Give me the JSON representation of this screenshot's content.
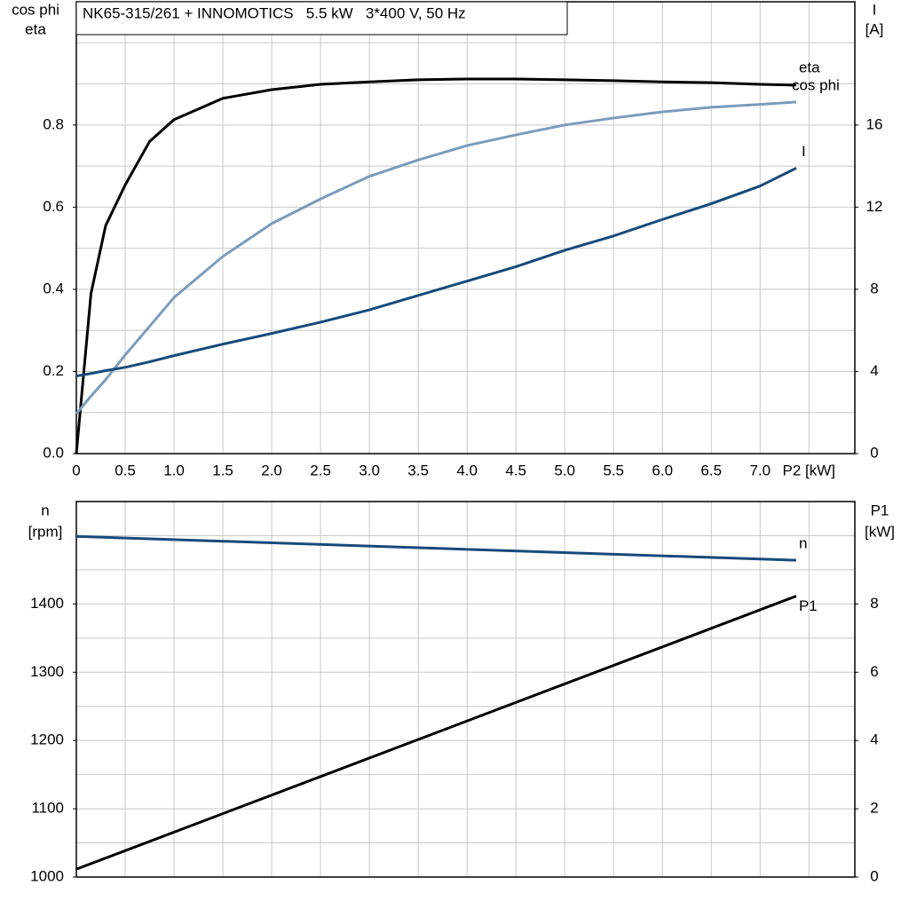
{
  "chart_data": [
    {
      "type": "line",
      "title": "NK65-315/261 + INNOMOTICS   5.5 kW   3*400 V, 50 Hz",
      "ylabel": [
        "cos phi",
        "eta"
      ],
      "y2label": [
        "I",
        "[A]"
      ],
      "x": [
        0,
        0.15,
        0.3,
        0.5,
        0.75,
        1,
        1.5,
        2,
        2.5,
        3,
        3.5,
        4,
        4.5,
        5,
        5.5,
        6,
        6.5,
        7,
        7.37
      ],
      "series": [
        {
          "name": "eta",
          "color": "#000000",
          "values": [
            0,
            0.39,
            0.555,
            0.654,
            0.76,
            0.813,
            0.865,
            0.886,
            0.899,
            0.905,
            0.91,
            0.912,
            0.912,
            0.91,
            0.908,
            0.905,
            0.903,
            0.899,
            0.897
          ]
        },
        {
          "name": "cos phi",
          "color": "#7b9cbb",
          "values": [
            0.097,
            0.14,
            0.18,
            0.24,
            0.31,
            0.38,
            0.48,
            0.56,
            0.62,
            0.675,
            0.715,
            0.75,
            0.776,
            0.8,
            0.817,
            0.832,
            0.843,
            0.85,
            0.856
          ]
        },
        {
          "name": "I",
          "color": "#174a7c",
          "axis": "y2",
          "values": [
            3.78,
            3.9,
            4.04,
            4.2,
            4.47,
            4.77,
            5.33,
            5.85,
            6.4,
            7.0,
            7.7,
            8.4,
            9.1,
            9.9,
            10.6,
            11.4,
            12.17,
            13.03,
            13.9
          ]
        }
      ],
      "xlim": [
        0,
        7.97
      ],
      "xticks": [
        0,
        0.5,
        {
          "value": 1,
          "label": "1.0"
        },
        1.5,
        {
          "value": 2,
          "label": "2.0"
        },
        2.5,
        {
          "value": 3,
          "label": "3.0"
        },
        3.5,
        {
          "value": 4,
          "label": "4.0"
        },
        4.5,
        {
          "value": 5,
          "label": "5.0"
        },
        5.5,
        {
          "value": 6,
          "label": "6.0"
        },
        6.5,
        {
          "value": 7,
          "label": "7.0"
        },
        {
          "value": 7.5,
          "label": "P2 [kW]"
        }
      ],
      "ylim": [
        0,
        1.1
      ],
      "yticks": [
        {
          "value": 0,
          "label": "0.0"
        },
        0.2,
        0.4,
        0.6,
        0.8
      ],
      "y2lim": [
        0,
        22
      ],
      "y2ticks": [
        0,
        4,
        8,
        12,
        16
      ],
      "grid": true
    },
    {
      "type": "line",
      "ylabel": [
        "n",
        "[rpm]"
      ],
      "y2label": [
        "P1",
        "[kW]"
      ],
      "x": [
        0,
        7.37
      ],
      "series": [
        {
          "name": "n",
          "color": "#174a7c",
          "values": [
            1499,
            1464
          ]
        },
        {
          "name": "P1",
          "color": "#000000",
          "axis": "y2",
          "values": [
            0.23,
            8.23
          ]
        }
      ],
      "xlim": [
        0,
        7.97
      ],
      "xticks": [
        0,
        0.5,
        1,
        1.5,
        2,
        2.5,
        3,
        3.5,
        4,
        4.5,
        5,
        5.5,
        6,
        6.5,
        7,
        7.5
      ],
      "ylim": [
        1000,
        1550
      ],
      "yticks": [
        1000,
        1100,
        1200,
        1300,
        1400
      ],
      "y2lim": [
        0,
        11
      ],
      "y2ticks": [
        0,
        2,
        4,
        6,
        8
      ],
      "grid": true
    }
  ]
}
